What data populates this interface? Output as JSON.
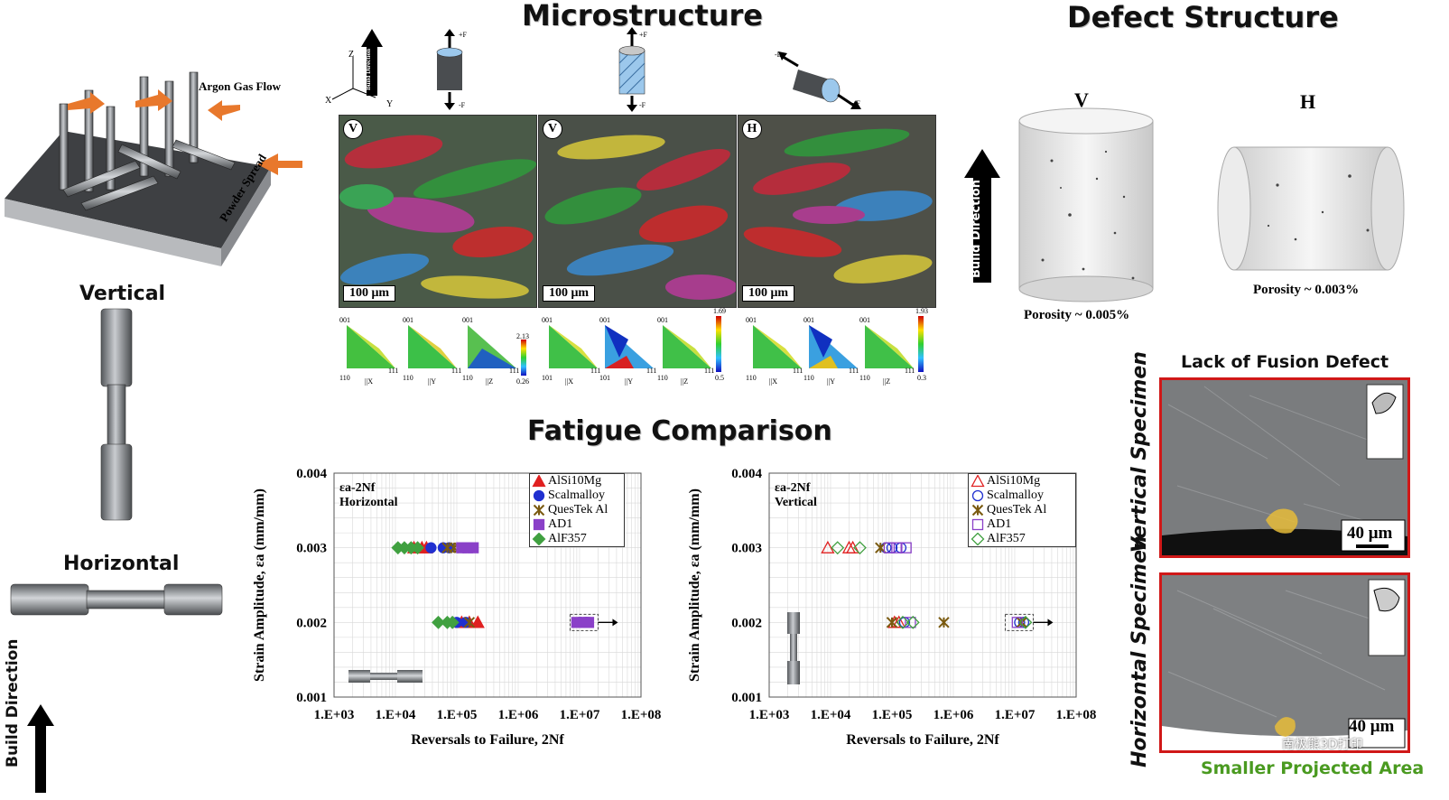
{
  "microstructure": {
    "title": "Microstructure",
    "panel_tags": [
      "V",
      "V",
      "H"
    ],
    "scale_bar": "100 μm",
    "axes_labels": {
      "z": "Z",
      "x": "X",
      "y": "Y",
      "build": "Build Direction"
    },
    "force_labels": [
      "+F",
      "-F",
      "+F",
      "-F",
      "-F",
      "+F"
    ],
    "ipf_labels": {
      "t001": "001",
      "t101": "101",
      "t110": "110",
      "t111": "111"
    },
    "ipf_groups": [
      {
        "axes": [
          "||X",
          "||Y",
          "||Z"
        ],
        "max": "2.13",
        "min": "0.26"
      },
      {
        "axes": [
          "||X",
          "||Y",
          "||Z"
        ],
        "max": "1.69",
        "min": "0.5"
      },
      {
        "axes": [
          "||X",
          "||Y",
          "||Z"
        ],
        "max": "1.93",
        "min": "0.3"
      }
    ]
  },
  "process": {
    "argon": "Argon Gas Flow",
    "powder": "Powder Spread",
    "vertical": "Vertical",
    "horizontal": "Horizontal",
    "build_direction": "Build Direction"
  },
  "defect": {
    "title": "Defect Structure",
    "build_direction": "Build Direction",
    "v_label": "V",
    "h_label": "H",
    "v_porosity": "Porosity ~ 0.005%",
    "h_porosity": "Porosity ~ 0.003%",
    "lof_title": "Lack of Fusion Defect",
    "vertical_specimen": "Vertical Specimen",
    "horizontal_specimen": "Horizontal Specimen",
    "scale": "40 μm",
    "smaller_area": "Smaller Projected Area",
    "watermark": "南极熊3D打印"
  },
  "fatigue": {
    "title": "Fatigue Comparison"
  },
  "colors": {
    "red": "#e02020",
    "blue": "#2030d0",
    "brown": "#7a5a10",
    "purple": "#8a40c8",
    "green": "#40a040",
    "frame_red": "#d01818",
    "caption_green": "#4a9a20"
  },
  "chart_data": [
    {
      "type": "scatter",
      "title": "εa-2Nf Horizontal",
      "title_line1": "εa-2Nf",
      "title_line2": "Horizontal",
      "xlabel": "Reversals to Failure, 2Nf",
      "ylabel": "Strain Amplitude, εa (mm/mm)",
      "x_scale": "log",
      "xlim": [
        1000,
        100000000
      ],
      "ylim": [
        0.001,
        0.004
      ],
      "x_ticks": [
        "1.E+03",
        "1.E+04",
        "1.E+05",
        "1.E+06",
        "1.E+07",
        "1.E+08"
      ],
      "y_ticks": [
        "0.001",
        "0.002",
        "0.003",
        "0.004"
      ],
      "grid": true,
      "legend_position": "top-right",
      "filled_markers": true,
      "series": [
        {
          "name": "AlSi10Mg",
          "marker": "triangle",
          "color": "#e02020",
          "points": [
            [
              20000,
              0.003
            ],
            [
              27000,
              0.003
            ],
            [
              32000,
              0.003
            ],
            [
              120000,
              0.002
            ],
            [
              160000,
              0.002
            ],
            [
              220000,
              0.002
            ]
          ]
        },
        {
          "name": "Scalmalloy",
          "marker": "circle",
          "color": "#2030d0",
          "points": [
            [
              38000,
              0.003
            ],
            [
              60000,
              0.003
            ],
            [
              75000,
              0.003
            ],
            [
              100000,
              0.002
            ],
            [
              140000,
              0.002
            ],
            [
              10000000,
              0.002
            ],
            [
              13000000,
              0.002
            ]
          ]
        },
        {
          "name": "QuesTek Al",
          "marker": "star",
          "color": "#7a5a10",
          "points": [
            [
              70000,
              0.003
            ],
            [
              90000,
              0.003
            ],
            [
              110000,
              0.003
            ],
            [
              160000,
              0.002
            ],
            [
              11000000,
              0.002
            ]
          ]
        },
        {
          "name": "AD1",
          "marker": "square",
          "color": "#8a40c8",
          "points": [
            [
              120000,
              0.003
            ],
            [
              150000,
              0.003
            ],
            [
              185000,
              0.003
            ],
            [
              9000000,
              0.002
            ],
            [
              12000000,
              0.002
            ],
            [
              14000000,
              0.002
            ]
          ]
        },
        {
          "name": "AlF357",
          "marker": "diamond",
          "color": "#40a040",
          "points": [
            [
              11000,
              0.003
            ],
            [
              14000,
              0.003
            ],
            [
              18000,
              0.003
            ],
            [
              23000,
              0.003
            ],
            [
              50000,
              0.002
            ],
            [
              70000,
              0.002
            ],
            [
              85000,
              0.002
            ]
          ]
        }
      ]
    },
    {
      "type": "scatter",
      "title": "εa-2Nf Vertical",
      "title_line1": "εa-2Nf",
      "title_line2": "Vertical",
      "xlabel": "Reversals to Failure, 2Nf",
      "ylabel": "Strain Amplitude, εa (mm/mm)",
      "x_scale": "log",
      "xlim": [
        1000,
        100000000
      ],
      "ylim": [
        0.001,
        0.004
      ],
      "x_ticks": [
        "1.E+03",
        "1.E+04",
        "1.E+05",
        "1.E+06",
        "1.E+07",
        "1.E+08"
      ],
      "y_ticks": [
        "0.001",
        "0.002",
        "0.003",
        "0.004"
      ],
      "grid": true,
      "legend_position": "top-right",
      "filled_markers": false,
      "series": [
        {
          "name": "AlSi10Mg",
          "marker": "triangle",
          "color": "#e02020",
          "points": [
            [
              9000,
              0.003
            ],
            [
              20000,
              0.003
            ],
            [
              23000,
              0.003
            ],
            [
              110000,
              0.002
            ],
            [
              130000,
              0.002
            ]
          ]
        },
        {
          "name": "Scalmalloy",
          "marker": "circle",
          "color": "#2030d0",
          "points": [
            [
              80000,
              0.003
            ],
            [
              100000,
              0.003
            ],
            [
              140000,
              0.003
            ],
            [
              160000,
              0.002
            ],
            [
              12000000,
              0.002
            ],
            [
              14000000,
              0.002
            ]
          ]
        },
        {
          "name": "QuesTek Al",
          "marker": "star",
          "color": "#7a5a10",
          "points": [
            [
              65000,
              0.003
            ],
            [
              100000,
              0.002
            ],
            [
              700000,
              0.002
            ],
            [
              13000000,
              0.002
            ]
          ]
        },
        {
          "name": "AD1",
          "marker": "square",
          "color": "#8a40c8",
          "points": [
            [
              90000,
              0.003
            ],
            [
              120000,
              0.003
            ],
            [
              170000,
              0.003
            ],
            [
              200000,
              0.002
            ],
            [
              11000000,
              0.002
            ]
          ]
        },
        {
          "name": "AlF357",
          "marker": "diamond",
          "color": "#40a040",
          "points": [
            [
              13000,
              0.003
            ],
            [
              30000,
              0.003
            ],
            [
              150000,
              0.002
            ],
            [
              220000,
              0.002
            ],
            [
              15000000,
              0.002
            ]
          ]
        }
      ]
    }
  ]
}
